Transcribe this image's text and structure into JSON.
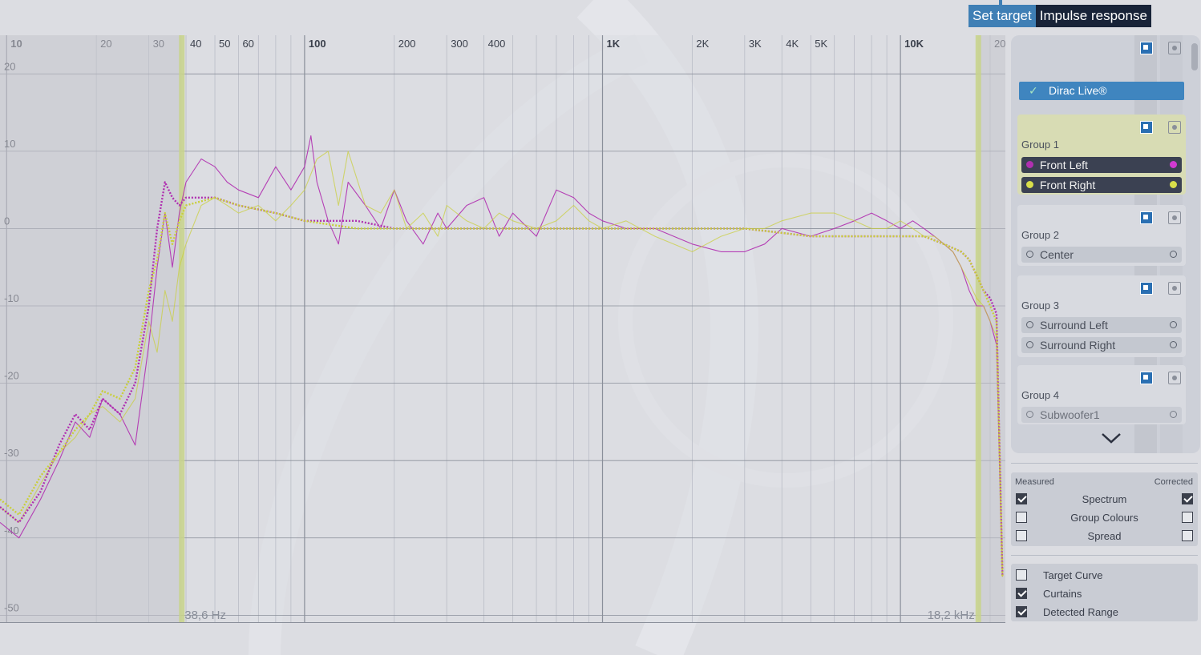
{
  "tabs": [
    {
      "label": "Set target",
      "active": true
    },
    {
      "label": "Impulse response",
      "active": false
    }
  ],
  "colors": {
    "front_left": "#b02fb0",
    "front_right": "#c9cf3a",
    "accent": "#3f7fb5",
    "curtain": "#c4c4cc",
    "range_marker": "#c8d48a"
  },
  "chart_data": {
    "type": "line",
    "x_scale": "log",
    "xlim": [
      9.5,
      22500
    ],
    "ylim": [
      -51,
      25
    ],
    "x_ticks": [
      {
        "value": 10,
        "label": "10",
        "major": true
      },
      {
        "value": 20,
        "label": "20",
        "major": false
      },
      {
        "value": 30,
        "label": "30",
        "major": false
      },
      {
        "value": 40,
        "label": "40",
        "major": false
      },
      {
        "value": 50,
        "label": "50",
        "major": false
      },
      {
        "value": 60,
        "label": "60",
        "major": false
      },
      {
        "value": 100,
        "label": "100",
        "major": true
      },
      {
        "value": 200,
        "label": "200",
        "major": false
      },
      {
        "value": 300,
        "label": "300",
        "major": false
      },
      {
        "value": 400,
        "label": "400",
        "major": false
      },
      {
        "value": 1000,
        "label": "1K",
        "major": true
      },
      {
        "value": 2000,
        "label": "2K",
        "major": false
      },
      {
        "value": 3000,
        "label": "3K",
        "major": false
      },
      {
        "value": 4000,
        "label": "4K",
        "major": false
      },
      {
        "value": 5000,
        "label": "5K",
        "major": false
      },
      {
        "value": 10000,
        "label": "10K",
        "major": true
      },
      {
        "value": 20000,
        "label": "20K",
        "major": false
      }
    ],
    "y_ticks": [
      20,
      10,
      0,
      -10,
      -20,
      -30,
      -40,
      -50
    ],
    "y_tick_labels": [
      "20",
      "10",
      "0",
      "-10",
      "-20",
      "-30",
      "-40",
      "-50"
    ],
    "detected_range": {
      "low_hz": 38.6,
      "high_hz": 18200,
      "low_label": "38,6 Hz",
      "high_label": "18,2 kHz"
    },
    "series": [
      {
        "name": "Front Left",
        "kind": "measured",
        "x": [
          9.5,
          11,
          13,
          15,
          17,
          19,
          21,
          24,
          27,
          30,
          32,
          34,
          36,
          38,
          40,
          45,
          50,
          55,
          60,
          70,
          80,
          90,
          100,
          105,
          110,
          120,
          130,
          140,
          160,
          180,
          200,
          220,
          250,
          280,
          300,
          350,
          400,
          450,
          500,
          600,
          700,
          800,
          900,
          1000,
          1200,
          1500,
          2000,
          2500,
          3000,
          3500,
          4000,
          5000,
          6000,
          7000,
          8000,
          9000,
          10000,
          11000,
          12000,
          13000,
          14000,
          15000,
          16000,
          17000,
          18000,
          19000,
          20000,
          21000,
          22000
        ],
        "y": [
          -38,
          -40,
          -35,
          -30,
          -25,
          -27,
          -22,
          -24,
          -28,
          -15,
          -5,
          2,
          -5,
          2,
          6,
          9,
          8,
          6,
          5,
          4,
          8,
          5,
          8,
          12,
          6,
          1,
          -2,
          6,
          3,
          0,
          5,
          1,
          -2,
          2,
          0,
          3,
          4,
          -1,
          2,
          -1,
          5,
          4,
          2,
          1,
          0,
          0,
          -2,
          -3,
          -3,
          -2,
          0,
          -1,
          0,
          1,
          2,
          1,
          0,
          1,
          0,
          -1,
          -2,
          -3,
          -5,
          -8,
          -10,
          -10,
          -12,
          -15,
          -45
        ]
      },
      {
        "name": "Front Right",
        "kind": "measured",
        "x": [
          9.5,
          11,
          13,
          15,
          17,
          19,
          21,
          24,
          27,
          30,
          32,
          34,
          36,
          38,
          40,
          45,
          50,
          55,
          60,
          70,
          80,
          90,
          100,
          110,
          120,
          130,
          140,
          160,
          180,
          200,
          220,
          250,
          280,
          300,
          350,
          400,
          450,
          500,
          600,
          700,
          800,
          900,
          1000,
          1200,
          1500,
          2000,
          2500,
          3000,
          3500,
          4000,
          5000,
          6000,
          7000,
          8000,
          9000,
          10000,
          11000,
          12000,
          13000,
          14000,
          15000,
          16000,
          17000,
          18000,
          19000,
          20000,
          21000,
          22000
        ],
        "y": [
          -36,
          -38,
          -33,
          -29,
          -27,
          -24,
          -23,
          -25,
          -22,
          -12,
          -16,
          -8,
          -12,
          -5,
          -2,
          3,
          4,
          3,
          2,
          3,
          1,
          3,
          5,
          9,
          10,
          3,
          10,
          3,
          2,
          5,
          0,
          2,
          -1,
          3,
          1,
          0,
          2,
          1,
          0,
          1,
          3,
          1,
          0,
          1,
          -1,
          -3,
          -1,
          0,
          0,
          1,
          2,
          2,
          1,
          0,
          0,
          1,
          0,
          -1,
          -1,
          -2,
          -3,
          -5,
          -7,
          -9,
          -10,
          -12,
          -14,
          -45
        ]
      },
      {
        "name": "Front Left",
        "kind": "corrected",
        "x": [
          9.5,
          11,
          13,
          15,
          17,
          19,
          21,
          24,
          27,
          30,
          32,
          34,
          36,
          38,
          40,
          50,
          60,
          80,
          100,
          150,
          200,
          300,
          500,
          1000,
          2000,
          3000,
          5000,
          8000,
          10000,
          12000,
          14000,
          16000,
          17000,
          18000,
          19000,
          20000,
          21000,
          22000
        ],
        "y": [
          -36,
          -38,
          -34,
          -28,
          -24,
          -26,
          -22,
          -24,
          -20,
          -10,
          0,
          6,
          4,
          3,
          4,
          4,
          3,
          2,
          1,
          1,
          0,
          0,
          0,
          0,
          0,
          0,
          -1,
          -1,
          -1,
          -1,
          -2,
          -3,
          -4,
          -6,
          -8,
          -9,
          -11,
          -45
        ]
      },
      {
        "name": "Front Right",
        "kind": "corrected",
        "x": [
          9.5,
          11,
          13,
          15,
          17,
          19,
          21,
          24,
          27,
          30,
          32,
          34,
          36,
          38,
          40,
          50,
          60,
          80,
          100,
          150,
          200,
          300,
          500,
          1000,
          2000,
          3000,
          5000,
          8000,
          10000,
          12000,
          14000,
          16000,
          17000,
          18000,
          19000,
          20000,
          21000,
          22000
        ],
        "y": [
          -35,
          -37,
          -32,
          -29,
          -26,
          -24,
          -21,
          -22,
          -18,
          -8,
          -4,
          2,
          -2,
          1,
          3,
          4,
          3,
          2,
          1,
          0,
          0,
          0,
          0,
          0,
          0,
          0,
          -1,
          -1,
          -1,
          -1,
          -2,
          -3,
          -4,
          -6,
          -8,
          -10,
          -12,
          -45
        ]
      }
    ]
  },
  "channel_panel": {
    "dirac_label": "Dirac Live®",
    "groups": [
      {
        "label": "Group 1",
        "active": true,
        "channels": [
          {
            "name": "Front Left",
            "color": "#b02fb0",
            "selected": true
          },
          {
            "name": "Front Right",
            "color": "#c9cf3a",
            "selected": true
          }
        ]
      },
      {
        "label": "Group 2",
        "active": false,
        "channels": [
          {
            "name": "Center",
            "selected": false
          }
        ]
      },
      {
        "label": "Group 3",
        "active": false,
        "channels": [
          {
            "name": "Surround Left",
            "selected": false
          },
          {
            "name": "Surround Right",
            "selected": false
          }
        ]
      },
      {
        "label": "Group 4",
        "active": false,
        "channels": [
          {
            "name": "Subwoofer1",
            "selected": false
          }
        ]
      }
    ]
  },
  "legend": {
    "measured_label": "Measured",
    "corrected_label": "Corrected",
    "rows": [
      {
        "label": "Spectrum",
        "measured": true,
        "corrected": true
      },
      {
        "label": "Group Colours",
        "measured": false,
        "corrected": false
      },
      {
        "label": "Spread",
        "measured": false,
        "corrected": false
      }
    ]
  },
  "overlays": [
    {
      "label": "Target Curve",
      "checked": false
    },
    {
      "label": "Curtains",
      "checked": true
    },
    {
      "label": "Detected Range",
      "checked": true
    }
  ]
}
